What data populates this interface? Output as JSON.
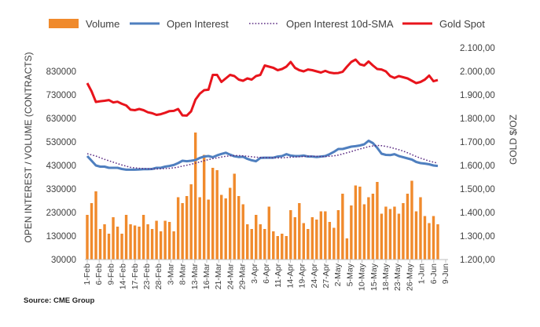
{
  "chart_data": {
    "type": "bar",
    "source": "Source: CME Group",
    "ylabel_left": "OPEN INTEREST / VOLUME (CONTRACTS)",
    "ylabel_right": "GOLD $/OZ",
    "ylim_left": [
      30000,
      930000
    ],
    "ylim_right": [
      1200,
      2100
    ],
    "left_ticks": [
      "30000",
      "130000",
      "230000",
      "330000",
      "430000",
      "530000",
      "630000",
      "730000",
      "830000"
    ],
    "right_ticks": [
      "1.200,00",
      "1.300,00",
      "1.400,00",
      "1.500,00",
      "1.600,00",
      "1.700,00",
      "1.800,00",
      "1.900,00",
      "2.000,00",
      "2.100,00"
    ],
    "x_tick_labels": [
      "1-Feb",
      "6-Feb",
      "9-Feb",
      "14-Feb",
      "17-Feb",
      "23-Feb",
      "28-Feb",
      "3-Mar",
      "8-Mar",
      "13-Mar",
      "16-Mar",
      "21-Mar",
      "24-Mar",
      "29-Mar",
      "3-Apr",
      "6-Apr",
      "11-Apr",
      "14-Apr",
      "19-Apr",
      "24-Apr",
      "27-Apr",
      "2-May",
      "5-May",
      "10-May",
      "15-May",
      "18-May",
      "23-May",
      "26-May",
      "1-Jun",
      "6-Jun",
      "9-Jun"
    ],
    "legend": [
      {
        "name": "Volume",
        "color": "#f08a2c",
        "style": "bar"
      },
      {
        "name": "Open Interest",
        "color": "#4f7fbf",
        "style": "line"
      },
      {
        "name": "Open Interest 10d-SMA",
        "color": "#5a2a82",
        "style": "dotted"
      },
      {
        "name": "Gold Spot",
        "color": "#e8141c",
        "style": "line"
      }
    ],
    "series": [
      {
        "name": "Volume",
        "axis": "left",
        "values": [
          220000,
          270000,
          320000,
          160000,
          180000,
          140000,
          210000,
          170000,
          140000,
          220000,
          180000,
          175000,
          170000,
          220000,
          180000,
          160000,
          195000,
          150000,
          195000,
          190000,
          150000,
          295000,
          270000,
          300000,
          350000,
          570000,
          295000,
          475000,
          285000,
          420000,
          410000,
          305000,
          290000,
          335000,
          395000,
          300000,
          265000,
          180000,
          160000,
          220000,
          180000,
          160000,
          255000,
          150000,
          130000,
          140000,
          130000,
          240000,
          210000,
          270000,
          185000,
          160000,
          210000,
          200000,
          235000,
          235000,
          190000,
          165000,
          240000,
          310000,
          120000,
          260000,
          345000,
          340000,
          265000,
          295000,
          310000,
          360000,
          225000,
          255000,
          245000,
          255000,
          225000,
          270000,
          310000,
          365000,
          235000,
          295000,
          215000,
          185000,
          215000,
          180000
        ]
      },
      {
        "name": "Open Interest",
        "axis": "left",
        "values": [
          470000,
          450000,
          430000,
          425000,
          425000,
          420000,
          420000,
          420000,
          415000,
          412000,
          412000,
          412000,
          413000,
          414000,
          414000,
          415000,
          420000,
          420000,
          425000,
          428000,
          432000,
          440000,
          450000,
          448000,
          450000,
          453000,
          462000,
          468000,
          470000,
          465000,
          473000,
          479000,
          484000,
          476000,
          469000,
          466000,
          467000,
          458000,
          452000,
          448000,
          462000,
          463000,
          463000,
          463000,
          468000,
          470000,
          478000,
          472000,
          470000,
          470000,
          472000,
          468000,
          468000,
          466000,
          468000,
          470000,
          478000,
          488000,
          500000,
          500000,
          505000,
          510000,
          512000,
          515000,
          520000,
          535000,
          525000,
          505000,
          480000,
          475000,
          474000,
          478000,
          470000,
          465000,
          460000,
          455000,
          445000,
          440000,
          438000,
          435000,
          430000,
          428000
        ]
      },
      {
        "name": "Open Interest 10d-SMA",
        "axis": "left",
        "values": [
          480000,
          475000,
          470000,
          463000,
          456000,
          450000,
          444000,
          438000,
          432000,
          427000,
          422000,
          420000,
          418000,
          417000,
          416000,
          415000,
          415000,
          416000,
          417000,
          418000,
          420000,
          423000,
          427000,
          431000,
          435000,
          440000,
          445000,
          450000,
          455000,
          459000,
          462000,
          466000,
          469000,
          471000,
          472000,
          472000,
          471000,
          469000,
          467000,
          465000,
          464000,
          463000,
          463000,
          462000,
          462000,
          462000,
          464000,
          465000,
          466000,
          467000,
          468000,
          469000,
          469000,
          469000,
          468000,
          468000,
          469000,
          471000,
          474000,
          479000,
          484000,
          489000,
          495000,
          500000,
          505000,
          510000,
          513000,
          515000,
          514000,
          511000,
          507000,
          502000,
          497000,
          491000,
          484000,
          476000,
          468000,
          461000,
          455000,
          449000,
          444000,
          440000
        ]
      },
      {
        "name": "Gold Spot",
        "axis": "right",
        "values": [
          1950,
          1915,
          1870,
          1873,
          1875,
          1878,
          1868,
          1871,
          1862,
          1855,
          1837,
          1835,
          1840,
          1835,
          1826,
          1822,
          1815,
          1818,
          1824,
          1831,
          1832,
          1840,
          1813,
          1812,
          1830,
          1880,
          1905,
          1920,
          1922,
          1985,
          1985,
          1955,
          1970,
          1985,
          1980,
          1965,
          1960,
          1970,
          1965,
          1980,
          1985,
          2025,
          2020,
          2015,
          2005,
          2010,
          2020,
          2040,
          2015,
          2005,
          2000,
          2008,
          2005,
          2000,
          1995,
          2002,
          1995,
          1992,
          1993,
          1998,
          2020,
          2040,
          2050,
          2030,
          2025,
          2042,
          2025,
          2010,
          2008,
          2000,
          1980,
          1972,
          1980,
          1975,
          1970,
          1960,
          1950,
          1955,
          1965,
          1982,
          1958,
          1963
        ]
      }
    ]
  }
}
